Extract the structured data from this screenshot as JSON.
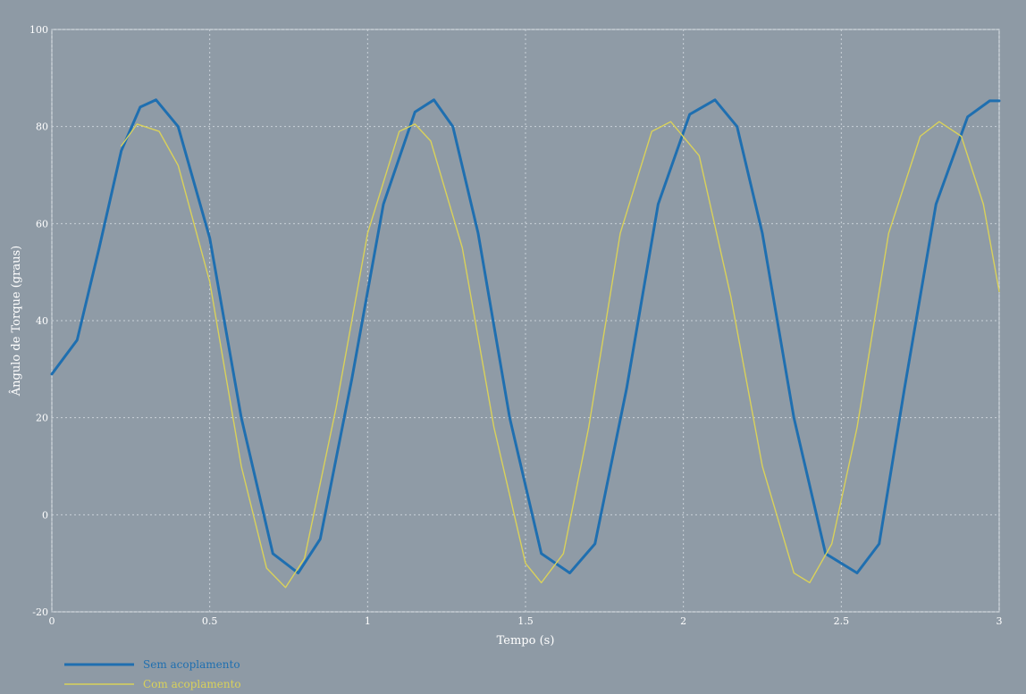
{
  "colors": {
    "background": "#8e9aa5",
    "plot_background": "#8f9ba6",
    "grid": "#c9d1d8",
    "axis_text": "#ffffff",
    "series_sem": "#1f6fb0",
    "series_com": "#d9d15a"
  },
  "chart_data": {
    "type": "line",
    "title": "",
    "xlabel": "Tempo (s)",
    "ylabel": "Ângulo de Torque (graus)",
    "xlim": [
      0,
      3
    ],
    "ylim": [
      -20,
      100
    ],
    "xticks": [
      0,
      0.5,
      1,
      1.5,
      2,
      2.5,
      3
    ],
    "xtick_labels": [
      "0",
      "0.5",
      "1",
      "1.5",
      "2",
      "2.5",
      "3"
    ],
    "yticks": [
      -20,
      0,
      20,
      40,
      60,
      80,
      100
    ],
    "ytick_labels": [
      "-20",
      "0",
      "20",
      "40",
      "60",
      "80",
      "100"
    ],
    "grid": true,
    "legend_position": "bottom-left",
    "series": [
      {
        "name": "Sem acoplamento",
        "color": "#1f6fb0",
        "x": [
          0,
          0.08,
          0.15,
          0.22,
          0.28,
          0.33,
          0.4,
          0.5,
          0.6,
          0.7,
          0.78,
          0.85,
          0.95,
          1.05,
          1.15,
          1.21,
          1.27,
          1.35,
          1.45,
          1.55,
          1.64,
          1.72,
          1.82,
          1.92,
          2.02,
          2.1,
          2.17,
          2.25,
          2.35,
          2.45,
          2.55,
          2.62,
          2.7,
          2.8,
          2.9,
          2.97,
          3.0
        ],
        "y": [
          29,
          36,
          55,
          75,
          84,
          85.5,
          80,
          57,
          20,
          -8,
          -12,
          -5,
          28,
          64,
          83,
          85.5,
          80,
          58,
          20,
          -8,
          -12,
          -6,
          26,
          64,
          82.5,
          85.5,
          80,
          58,
          20,
          -8,
          -12,
          -6,
          26,
          64,
          82,
          85.3,
          85.3
        ]
      },
      {
        "name": "Com acoplamento",
        "color": "#d9d15a",
        "x": [
          0.22,
          0.27,
          0.34,
          0.4,
          0.5,
          0.6,
          0.68,
          0.74,
          0.8,
          0.9,
          1.0,
          1.1,
          1.15,
          1.2,
          1.3,
          1.4,
          1.5,
          1.55,
          1.62,
          1.7,
          1.8,
          1.9,
          1.96,
          2.05,
          2.15,
          2.25,
          2.35,
          2.4,
          2.47,
          2.55,
          2.65,
          2.75,
          2.81,
          2.88,
          2.95,
          3.0
        ],
        "y": [
          76,
          80.5,
          79,
          72,
          48,
          10,
          -11,
          -15,
          -9,
          22,
          58,
          79,
          80.5,
          77,
          55,
          18,
          -10,
          -14,
          -8,
          18,
          58,
          79,
          81,
          74,
          45,
          10,
          -12,
          -14,
          -6,
          18,
          58,
          78,
          81,
          78,
          64,
          46
        ]
      }
    ]
  }
}
